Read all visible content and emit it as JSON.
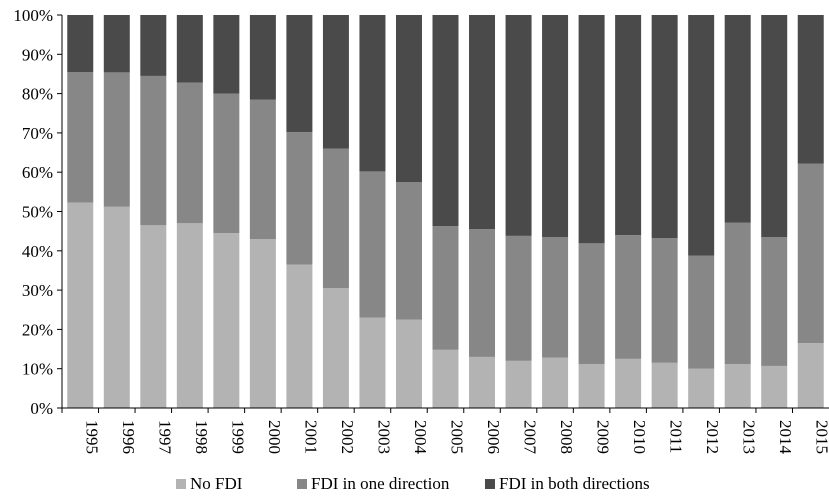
{
  "chart_data": {
    "type": "bar",
    "stacked": true,
    "categories": [
      "1995",
      "1996",
      "1997",
      "1998",
      "1999",
      "2000",
      "2001",
      "2002",
      "2003",
      "2004",
      "2005",
      "2006",
      "2007",
      "2008",
      "2009",
      "2010",
      "2011",
      "2012",
      "2013",
      "2014",
      "2015"
    ],
    "series": [
      {
        "name": "No FDI",
        "color": "#b3b3b3",
        "values": [
          52.3,
          51.2,
          46.5,
          47.0,
          44.5,
          43.0,
          36.5,
          30.5,
          23.0,
          22.5,
          14.8,
          13.0,
          12.0,
          12.8,
          11.2,
          12.5,
          11.5,
          10.0,
          11.2,
          10.7,
          16.5
        ]
      },
      {
        "name": "FDI in one direction",
        "color": "#878787",
        "values": [
          33.2,
          34.2,
          38.0,
          35.8,
          35.5,
          35.5,
          33.7,
          35.5,
          37.2,
          35.0,
          31.5,
          32.5,
          31.8,
          30.7,
          30.7,
          31.5,
          31.7,
          28.8,
          36.0,
          32.8,
          45.7
        ]
      },
      {
        "name": "FDI in both directions",
        "color": "#4a4a4a",
        "values": [
          14.5,
          14.6,
          15.5,
          17.2,
          20.0,
          21.5,
          29.8,
          34.0,
          39.8,
          42.5,
          53.7,
          54.5,
          56.2,
          56.5,
          58.1,
          56.0,
          56.8,
          61.2,
          52.8,
          56.5,
          37.8
        ]
      }
    ],
    "y_ticks": [
      "0%",
      "10%",
      "20%",
      "30%",
      "40%",
      "50%",
      "60%",
      "70%",
      "80%",
      "90%",
      "100%"
    ],
    "ylim": [
      0,
      100
    ],
    "title": "",
    "xlabel": "",
    "ylabel": "",
    "grid": false,
    "legend_position": "bottom"
  }
}
